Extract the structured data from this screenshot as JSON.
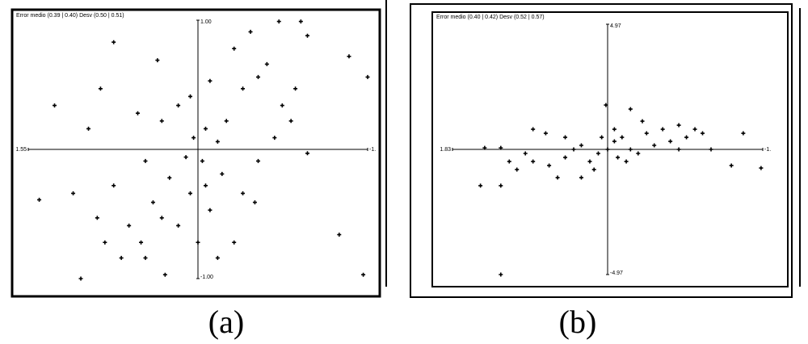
{
  "chart_data": [
    {
      "type": "scatter",
      "title": "Error medio (0.39 | 0.40) Desv (0.50 | 0.51)",
      "caption": "(a)",
      "color": "#000000",
      "xlim": [
        1.55,
        -1.55
      ],
      "ylim": [
        -1.0,
        1.0
      ],
      "xticks": [
        1.55,
        {
          "value": -1.55,
          "label": "-1."
        }
      ],
      "yticks": [
        {
          "value": -1.0,
          "label": "-1.00"
        },
        {
          "value": 1.0,
          "label": "1.00"
        }
      ],
      "x": [
        1.45,
        1.31,
        1.07,
        -1.51,
        -1.55,
        -1.38,
        -0.94,
        -0.74,
        0.89,
        0.77,
        0.37,
        -0.11,
        -0.41,
        -0.55,
        -0.77,
        0.04,
        -0.07,
        -0.18,
        0.11,
        -0.04,
        -0.26,
        0.26,
        0.41,
        0.63,
        0.85,
        0.7,
        0.3,
        0.52,
        0.18,
        -0.11,
        -0.41,
        -0.55,
        -0.7,
        -0.85,
        -1.0,
        -0.33,
        -0.18,
        -1.29,
        1.14,
        1.0,
        0.55,
        0.33,
        0.18,
        0.07,
        -0.33,
        -0.48,
        -0.63,
        -1.0,
        -0.89,
        0.48,
        0.77,
        0.92,
        0.33,
        0.07,
        -0.07,
        -0.22,
        -0.52,
        0.0,
        0.48
      ],
      "values": [
        -0.39,
        0.34,
        -1.0,
        -0.97,
        0.56,
        0.72,
        0.99,
        0.99,
        0.47,
        0.83,
        0.69,
        0.53,
        0.47,
        0.56,
        0.34,
        0.09,
        0.16,
        0.06,
        -0.06,
        -0.09,
        0.22,
        -0.22,
        -0.41,
        -0.59,
        -0.72,
        -0.84,
        -0.97,
        -0.72,
        -0.59,
        -0.47,
        -0.34,
        -0.09,
        0.09,
        0.22,
        -0.03,
        -0.72,
        -0.84,
        -0.66,
        -0.34,
        0.16,
        0.28,
        0.22,
        0.34,
        0.41,
        0.78,
        0.91,
        0.66,
        0.88,
        0.47,
        -0.09,
        -0.28,
        -0.53,
        -0.53,
        -0.34,
        -0.28,
        -0.19,
        -0.41,
        -0.72,
        -0.84
      ]
    },
    {
      "type": "scatter",
      "title": "Error medio (0.40 | 0.42) Desv (0.52 | 0.57)",
      "caption": "(b)",
      "color": "#000000",
      "xlim": [
        1.83,
        -1.83
      ],
      "ylim": [
        -4.97,
        4.97
      ],
      "xticks": [
        1.83,
        {
          "value": -1.83,
          "label": "-1."
        }
      ],
      "yticks": [
        -4.97,
        4.97
      ],
      "x": [
        1.5,
        1.26,
        1.26,
        1.07,
        0.88,
        0.69,
        0.5,
        0.31,
        0.11,
        0.0,
        -0.08,
        -0.17,
        -0.27,
        0.02,
        -0.46,
        -0.65,
        -0.84,
        -1.03,
        -1.22,
        -1.46,
        -1.6,
        -1.81,
        0.73,
        0.59,
        0.4,
        0.21,
        -0.12,
        -0.36,
        -0.55,
        -0.74,
        -0.93,
        -1.12,
        0.97,
        1.16,
        1.45,
        0.07,
        0.16,
        -0.22,
        -0.41,
        0.5,
        0.88,
        0.31,
        -0.08,
        -0.84,
        -0.27,
        1.26
      ],
      "values": [
        -1.44,
        -4.97,
        0.06,
        -0.8,
        0.8,
        -0.64,
        -0.32,
        0.16,
        -0.16,
        0.0,
        0.32,
        0.48,
        1.6,
        1.76,
        0.64,
        0.8,
        0.96,
        0.8,
        0.0,
        -0.64,
        0.64,
        -0.74,
        0.64,
        -1.12,
        0.0,
        -0.48,
        -0.32,
        -0.16,
        0.16,
        0.32,
        0.48,
        0.64,
        -0.16,
        -0.48,
        0.06,
        0.48,
        -0.8,
        -0.48,
        1.12,
        0.48,
        -0.48,
        -1.12,
        0.8,
        0.0,
        0.0,
        -1.44
      ]
    }
  ]
}
